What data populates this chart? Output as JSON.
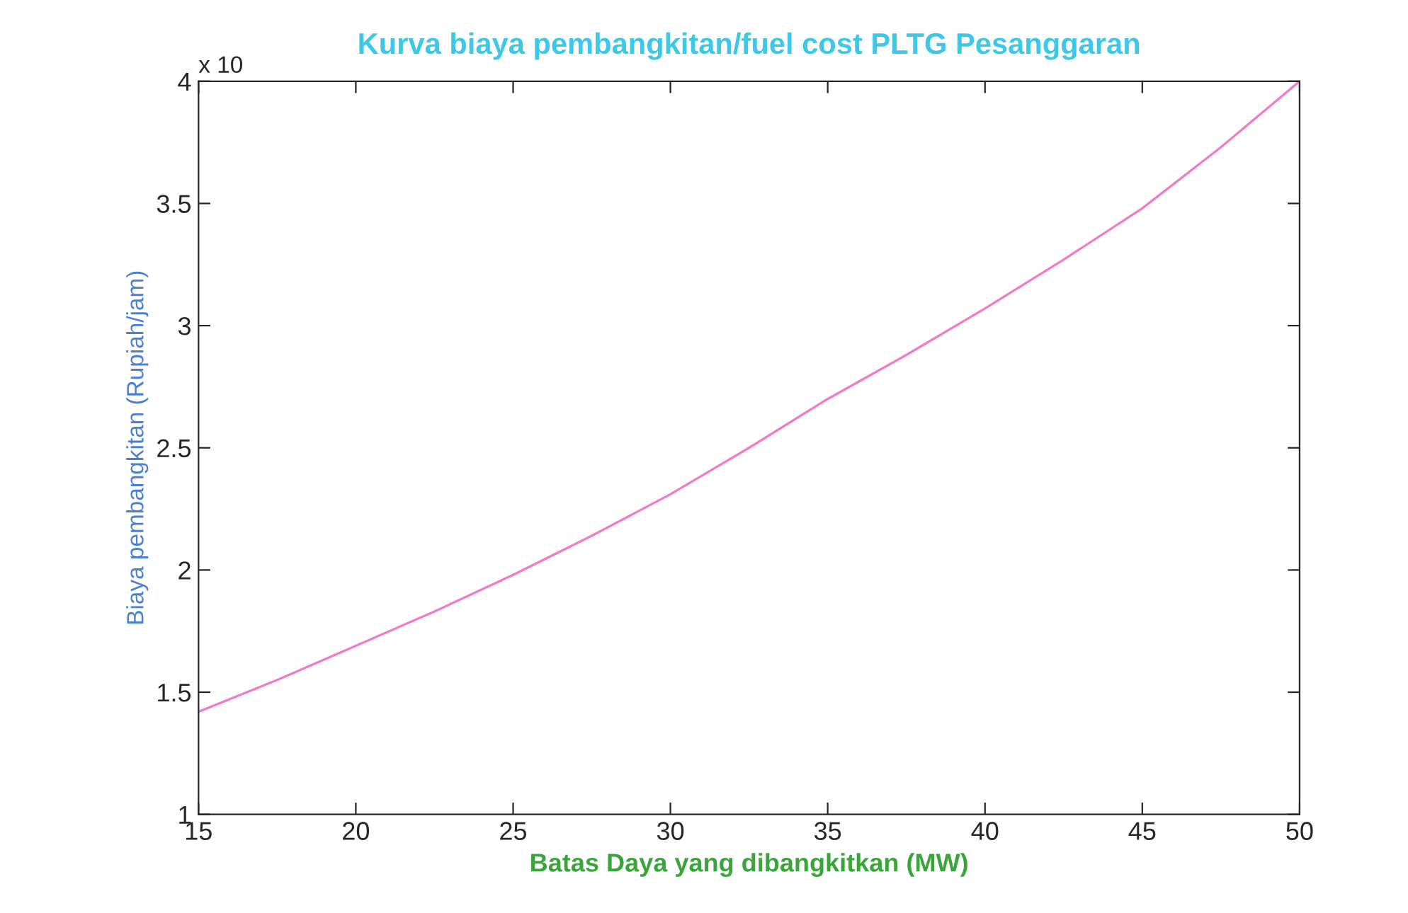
{
  "chart_data": {
    "type": "line",
    "title": "Kurva biaya pembangkitan/fuel cost PLTG Pesanggaran",
    "xlabel": "Batas Daya yang dibangkitkan (MW)",
    "ylabel": "Biaya pembangkitan (Rupiah/jam)",
    "x": [
      15,
      17.5,
      20,
      22.5,
      25,
      27.5,
      30,
      32.5,
      35,
      37.5,
      40,
      42.5,
      45,
      47.5,
      50
    ],
    "series": [
      {
        "color": "#f07cc8",
        "values": [
          1.42,
          1.55,
          1.69,
          1.83,
          1.98,
          2.14,
          2.31,
          2.5,
          2.7,
          2.88,
          3.07,
          3.27,
          3.48,
          3.73,
          4.0
        ]
      }
    ],
    "xlim": [
      15,
      50
    ],
    "xticks": [
      15,
      20,
      25,
      30,
      35,
      40,
      45,
      50
    ],
    "ylim": [
      1,
      4
    ],
    "yticks": [
      1,
      1.5,
      2,
      2.5,
      3,
      3.5,
      4
    ],
    "annotations": [
      "x 10"
    ],
    "grid": false,
    "marker": "none",
    "line_style": "solid",
    "legend": false
  }
}
